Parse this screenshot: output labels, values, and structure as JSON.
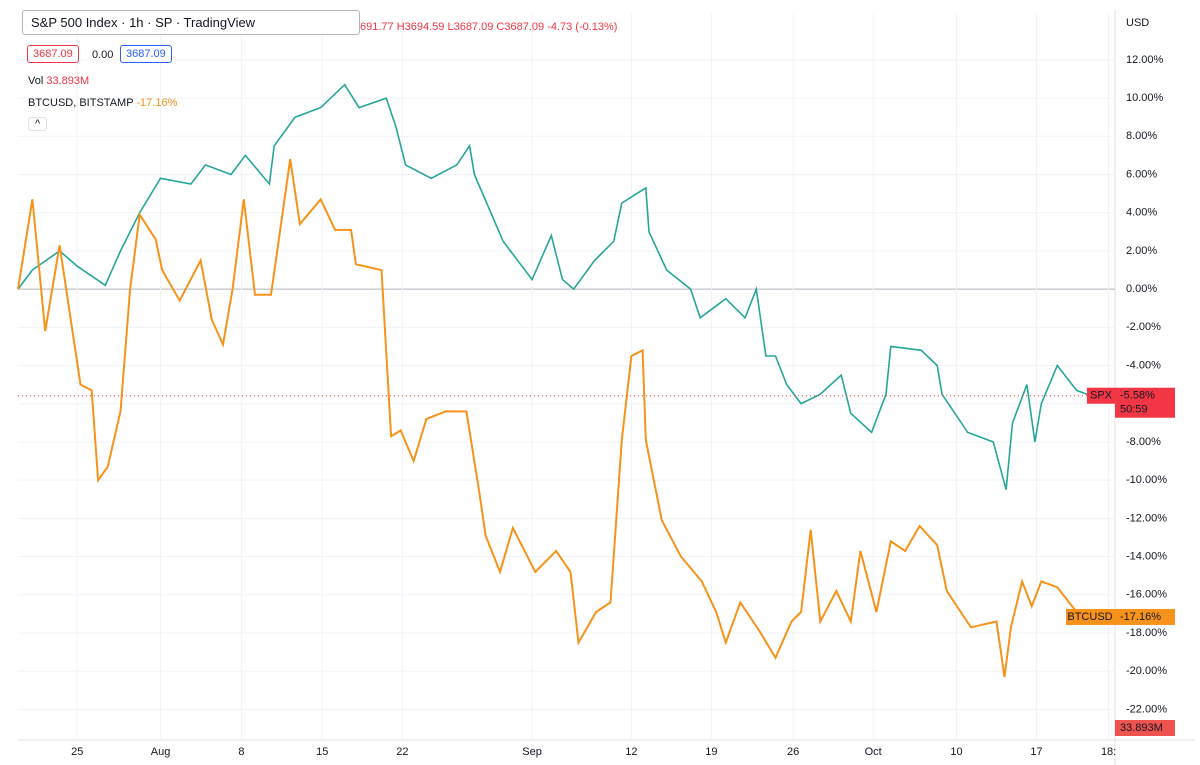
{
  "header": {
    "symbol": "S&P 500 Index",
    "interval": "1h",
    "exchange": "SP",
    "source": "TradingView",
    "ohlc": "691.77 H3694.59 L3687.09 C3687.09 -4.73 (-0.13%)",
    "sell": "3687.09",
    "spread": "0.00",
    "buy": "3687.09",
    "currency": "USD"
  },
  "chart_data": {
    "type": "line",
    "xlim": [
      -3.7,
      64.8
    ],
    "ylim": [
      -23.6,
      14.4
    ],
    "xticks": [
      {
        "value": 0,
        "label": "25"
      },
      {
        "value": 5.2,
        "label": "Aug"
      },
      {
        "value": 10.25,
        "label": "8"
      },
      {
        "value": 15.3,
        "label": "15"
      },
      {
        "value": 20.3,
        "label": "22"
      },
      {
        "value": 28.4,
        "label": "Sep"
      },
      {
        "value": 34.6,
        "label": "12"
      },
      {
        "value": 39.6,
        "label": "19"
      },
      {
        "value": 44.7,
        "label": "26"
      },
      {
        "value": 49.7,
        "label": "Oct"
      },
      {
        "value": 54.9,
        "label": "10"
      },
      {
        "value": 59.9,
        "label": "17"
      },
      {
        "value": 64.4,
        "label": "18:"
      }
    ],
    "yticks": [
      {
        "value": 12,
        "label": "12.00%"
      },
      {
        "value": 10,
        "label": "10.00%"
      },
      {
        "value": 8,
        "label": "8.00%"
      },
      {
        "value": 6,
        "label": "6.00%"
      },
      {
        "value": 4,
        "label": "4.00%"
      },
      {
        "value": 2,
        "label": "2.00%"
      },
      {
        "value": 0,
        "label": "0.00%"
      },
      {
        "value": -2,
        "label": "-2.00%"
      },
      {
        "value": -4,
        "label": "-4.00%"
      },
      {
        "value": -6,
        "label": "-6.00%"
      },
      {
        "value": -8,
        "label": "-8.00%"
      },
      {
        "value": -10,
        "label": "-10.00%"
      },
      {
        "value": -12,
        "label": "-12.00%"
      },
      {
        "value": -14,
        "label": "-14.00%"
      },
      {
        "value": -16,
        "label": "-16.00%"
      },
      {
        "value": -18,
        "label": "-18.00%"
      },
      {
        "value": -20,
        "label": "-20.00%"
      },
      {
        "value": -22,
        "label": "-22.00%"
      }
    ],
    "series": [
      {
        "name": "SPX",
        "color": "#26a69a",
        "tag_color": "#f23645",
        "last_label": "-5.58%",
        "countdown": "50:59",
        "x": [
          -3.7,
          -2.8,
          -1.1,
          0,
          1.75,
          2.7,
          3.9,
          5.2,
          7.1,
          8,
          9.6,
          10.5,
          12,
          12.3,
          13.6,
          15.2,
          16.7,
          17.6,
          19.3,
          19.9,
          20.5,
          22.1,
          23.7,
          24.5,
          24.8,
          26.6,
          28.4,
          29.6,
          30.3,
          31,
          32.3,
          33.5,
          34,
          35.5,
          35.7,
          36.8,
          38.3,
          38.9,
          40.5,
          41.7,
          42.4,
          43,
          43.6,
          44.3,
          45.2,
          46.4,
          47.7,
          48.3,
          49.6,
          50.5,
          50.8,
          52.7,
          53.7,
          54,
          55.6,
          57.2,
          58,
          58.4,
          59.3,
          59.8,
          60.2,
          61.2,
          62.4,
          63.3
        ],
        "values": [
          0,
          1,
          2,
          1.2,
          0.2,
          2,
          4,
          5.8,
          5.5,
          6.5,
          6,
          7,
          5.5,
          7.5,
          9,
          9.5,
          10.7,
          9.5,
          10,
          8.5,
          6.5,
          5.8,
          6.5,
          7.5,
          6,
          2.5,
          0.5,
          2.8,
          0.5,
          0,
          1.5,
          2.5,
          4.5,
          5.3,
          3,
          1,
          0,
          -1.5,
          -0.5,
          -1.5,
          0,
          -3.5,
          -3.5,
          -5,
          -6,
          -5.5,
          -4.5,
          -6.5,
          -7.5,
          -5.5,
          -3,
          -3.2,
          -4,
          -5.5,
          -7.5,
          -8,
          -10.5,
          -7,
          -5,
          -8,
          -6,
          -4,
          -5.3,
          -5.58
        ]
      },
      {
        "name": "BTCUSD, BITSTAMP",
        "short_name": "BTCUSD",
        "color": "#f7931a",
        "last_label": "-17.16%",
        "x": [
          -3.7,
          -2.8,
          -2,
          -1.1,
          0.2,
          0.9,
          1.3,
          1.9,
          2.7,
          3.3,
          3.9,
          4.9,
          5.3,
          6.4,
          7.7,
          8.4,
          9.1,
          9.7,
          10.4,
          11.1,
          12.1,
          13.3,
          13.9,
          15.2,
          16.1,
          17.1,
          17.4,
          19,
          19.6,
          20.2,
          21,
          21.8,
          23,
          24.3,
          25.1,
          25.5,
          26.4,
          27.2,
          28.6,
          29.9,
          30.8,
          31.3,
          32.4,
          33.3,
          34,
          34.6,
          35.3,
          35.5,
          36.5,
          37.7,
          39,
          39.9,
          40.5,
          41.4,
          42.6,
          43.6,
          44.6,
          45.2,
          45.8,
          46.4,
          47.4,
          48.3,
          48.9,
          49.9,
          50.8,
          51.7,
          52.6,
          53.7,
          54.3,
          55.8,
          57.4,
          57.9,
          58.3,
          59,
          59.6,
          60.2,
          61.2,
          62.4,
          63.3
        ],
        "values": [
          0,
          4.7,
          -2.2,
          2.3,
          -5,
          -5.3,
          -10,
          -9.3,
          -6.4,
          0,
          3.9,
          2.6,
          1,
          -0.6,
          1.5,
          -1.6,
          -2.9,
          0,
          4.7,
          -0.3,
          -0.3,
          6.8,
          3.4,
          4.7,
          3.1,
          3.1,
          1.3,
          1,
          -7.7,
          -7.4,
          -9,
          -6.8,
          -6.4,
          -6.4,
          -10.6,
          -12.9,
          -14.8,
          -12.5,
          -14.8,
          -13.7,
          -14.8,
          -18.5,
          -16.9,
          -16.4,
          -7.9,
          -3.5,
          -3.2,
          -7.9,
          -12.1,
          -14,
          -15.3,
          -16.9,
          -18.5,
          -16.4,
          -17.9,
          -19.3,
          -17.4,
          -16.9,
          -12.6,
          -17.4,
          -15.8,
          -17.4,
          -13.7,
          -16.9,
          -13.2,
          -13.7,
          -12.4,
          -13.4,
          -15.8,
          -17.7,
          -17.4,
          -20.3,
          -17.7,
          -15.3,
          -16.6,
          -15.3,
          -15.6,
          -16.9,
          -17.16
        ]
      }
    ],
    "volume": {
      "name": "Vol",
      "last_label": "33.893M",
      "color": "#ef5350"
    }
  }
}
